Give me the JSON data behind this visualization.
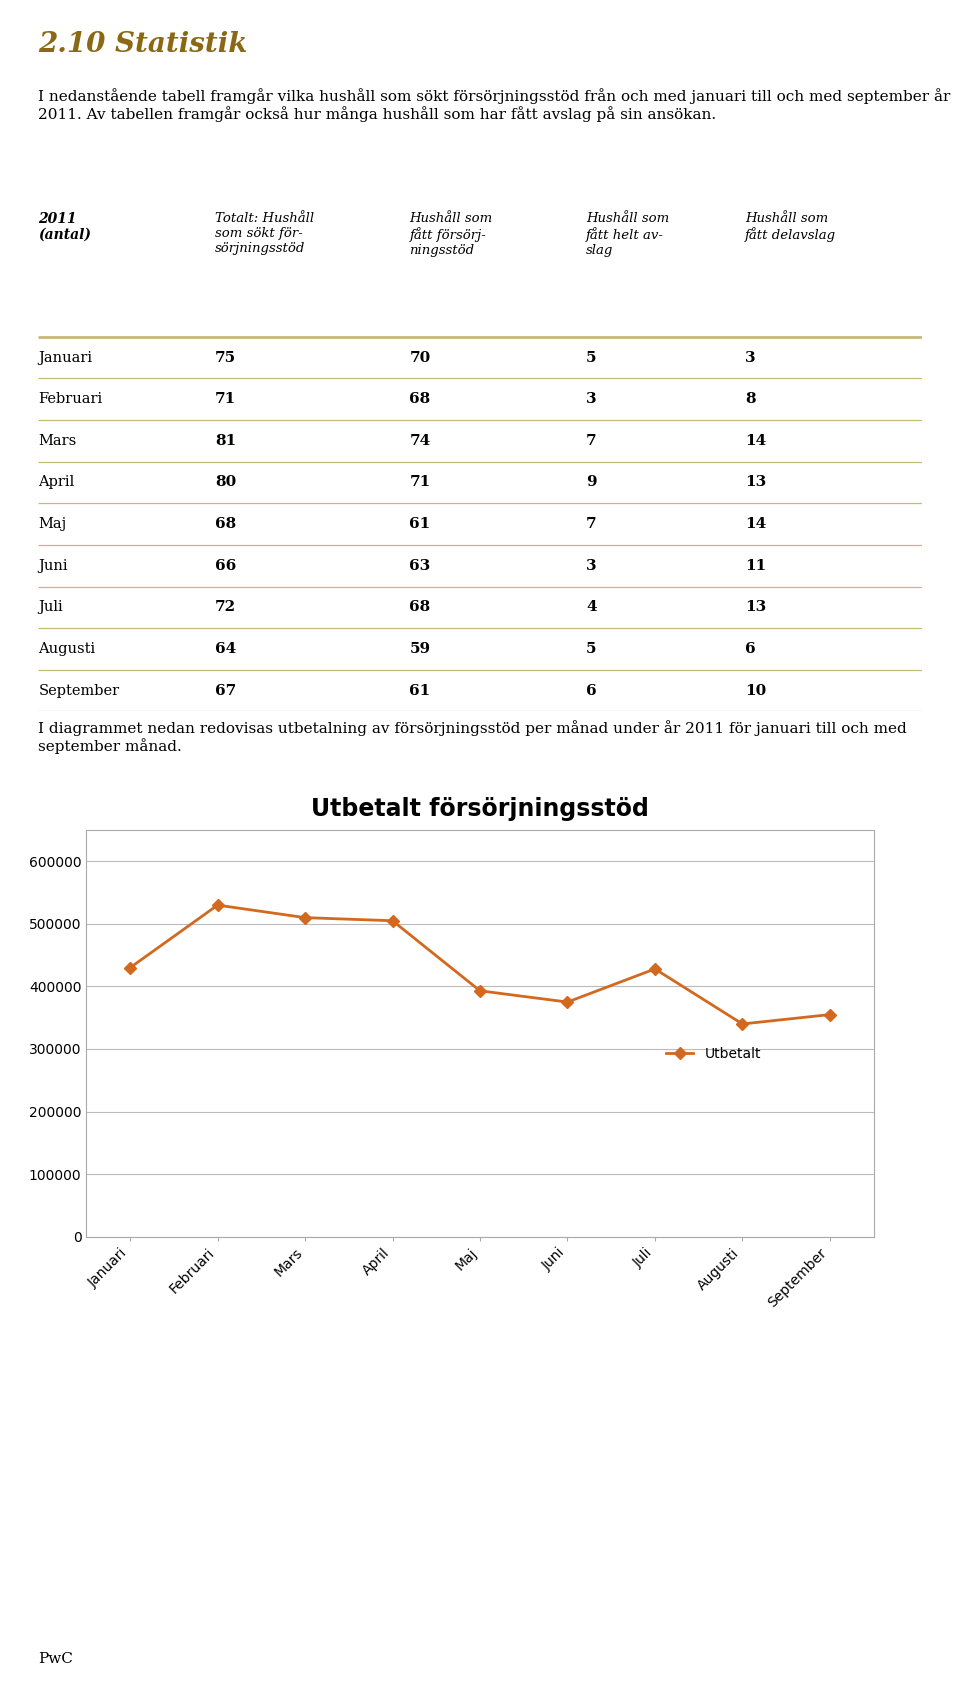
{
  "title": "2.10 Statistik",
  "title_color": "#8B6914",
  "intro_text": "I nedanstående tabell framgår vilka hushåll som sökt försörjningsstöd från och med januari till och med september år 2011. Av tabellen framgår också hur många hushåll som har fått avslag på sin ansökan.",
  "table_header_col0": "2011\n(antal)",
  "table_headers": [
    "Totalt: Hushåll\nsom sökt för-\nsörjningsstöd",
    "Hushåll som\nfått försörj-\nningsstöd",
    "Hushåll som\nfått helt av-\nslag",
    "Hushåll som\nfått delavslag"
  ],
  "months": [
    "Januari",
    "Februari",
    "Mars",
    "April",
    "Maj",
    "Juni",
    "Juli",
    "Augusti",
    "September"
  ],
  "data": [
    [
      75,
      70,
      5,
      3
    ],
    [
      71,
      68,
      3,
      8
    ],
    [
      81,
      74,
      7,
      14
    ],
    [
      80,
      71,
      9,
      13
    ],
    [
      68,
      61,
      7,
      14
    ],
    [
      66,
      63,
      3,
      11
    ],
    [
      72,
      68,
      4,
      13
    ],
    [
      64,
      59,
      5,
      6
    ],
    [
      67,
      61,
      6,
      10
    ]
  ],
  "chart_title": "Utbetalt försörjningsstöd",
  "chart_values": [
    430000,
    530000,
    510000,
    505000,
    393000,
    375000,
    428000,
    340000,
    355000
  ],
  "chart_color": "#D2691E",
  "legend_label": "Utbetalt",
  "chart_text": "I diagrammet nedan redovisas utbetalning av försörjningsstöd per månad under år 2011 för januari till och med september månad.",
  "footer_text": "PwC",
  "bg_color": "#FFFFFF",
  "line_separator_color": "#C8B878",
  "yticks": [
    0,
    100000,
    200000,
    300000,
    400000,
    500000,
    600000
  ]
}
